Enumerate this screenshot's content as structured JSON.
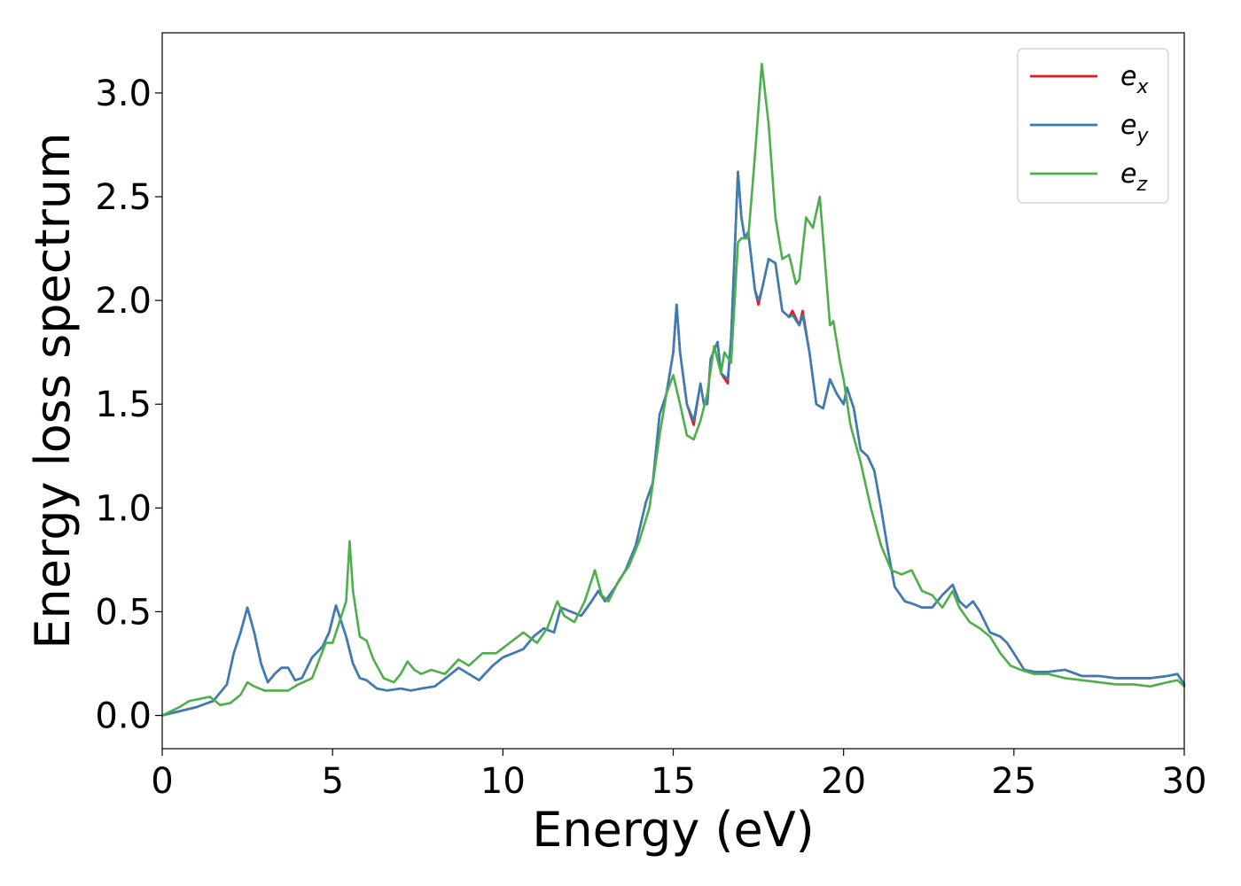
{
  "chart_data": {
    "type": "line",
    "title": "",
    "xlabel": "Energy (eV)",
    "ylabel": "Energy loss spectrum",
    "xlim": [
      0,
      30
    ],
    "ylim": [
      -0.16,
      3.29
    ],
    "xticks": [
      0,
      5,
      10,
      15,
      20,
      25,
      30
    ],
    "yticks": [
      0.0,
      0.5,
      1.0,
      1.5,
      2.0,
      2.5,
      3.0
    ],
    "xtick_labels": [
      "0",
      "5",
      "10",
      "15",
      "20",
      "25",
      "30"
    ],
    "ytick_labels": [
      "0.0",
      "0.5",
      "1.0",
      "1.5",
      "2.0",
      "2.5",
      "3.0"
    ],
    "grid": false,
    "legend_position": "top-right",
    "series": [
      {
        "name_base": "e",
        "name_sub": "x",
        "color": "#e41a1c",
        "x": [
          0,
          0.5,
          1,
          1.5,
          1.9,
          2.1,
          2.3,
          2.5,
          2.7,
          2.9,
          3.1,
          3.3,
          3.5,
          3.7,
          3.9,
          4.1,
          4.4,
          4.7,
          4.9,
          5.1,
          5.2,
          5.4,
          5.6,
          5.8,
          6.0,
          6.3,
          6.6,
          7.0,
          7.3,
          7.6,
          8.0,
          8.4,
          8.7,
          9.0,
          9.3,
          9.7,
          10.0,
          10.3,
          10.6,
          10.9,
          11.2,
          11.5,
          11.7,
          12.0,
          12.3,
          12.6,
          12.8,
          13.0,
          13.3,
          13.6,
          13.9,
          14.2,
          14.4,
          14.6,
          14.8,
          15.0,
          15.1,
          15.2,
          15.4,
          15.6,
          15.8,
          15.9,
          16.0,
          16.1,
          16.3,
          16.4,
          16.6,
          16.7,
          16.9,
          17.0,
          17.1,
          17.2,
          17.4,
          17.5,
          17.6,
          17.8,
          18.0,
          18.2,
          18.4,
          18.5,
          18.7,
          18.8,
          19.0,
          19.2,
          19.4,
          19.6,
          19.8,
          20.0,
          20.1,
          20.3,
          20.5,
          20.7,
          20.9,
          21.1,
          21.3,
          21.5,
          21.8,
          22.0,
          22.3,
          22.6,
          22.9,
          23.2,
          23.4,
          23.6,
          23.8,
          24.0,
          24.3,
          24.6,
          24.8,
          25.0,
          25.3,
          25.6,
          26.0,
          26.5,
          27.0,
          27.5,
          28.0,
          28.5,
          29.0,
          29.5,
          29.8,
          30.0
        ],
        "y": [
          0,
          0.02,
          0.04,
          0.07,
          0.15,
          0.3,
          0.4,
          0.52,
          0.4,
          0.25,
          0.16,
          0.2,
          0.23,
          0.23,
          0.17,
          0.18,
          0.28,
          0.33,
          0.4,
          0.53,
          0.48,
          0.38,
          0.25,
          0.18,
          0.17,
          0.13,
          0.12,
          0.13,
          0.12,
          0.13,
          0.14,
          0.19,
          0.23,
          0.2,
          0.17,
          0.24,
          0.28,
          0.3,
          0.32,
          0.38,
          0.42,
          0.4,
          0.52,
          0.5,
          0.48,
          0.55,
          0.6,
          0.55,
          0.62,
          0.7,
          0.82,
          1.03,
          1.12,
          1.45,
          1.55,
          1.75,
          1.98,
          1.75,
          1.5,
          1.4,
          1.6,
          1.5,
          1.5,
          1.72,
          1.8,
          1.65,
          1.6,
          1.82,
          2.62,
          2.4,
          2.3,
          2.33,
          2.05,
          1.98,
          2.05,
          2.2,
          2.18,
          1.95,
          1.92,
          1.95,
          1.88,
          1.95,
          1.75,
          1.5,
          1.48,
          1.62,
          1.55,
          1.5,
          1.58,
          1.48,
          1.28,
          1.25,
          1.18,
          1.0,
          0.8,
          0.62,
          0.55,
          0.54,
          0.52,
          0.52,
          0.58,
          0.63,
          0.55,
          0.52,
          0.55,
          0.5,
          0.4,
          0.38,
          0.35,
          0.3,
          0.22,
          0.21,
          0.21,
          0.22,
          0.19,
          0.19,
          0.18,
          0.18,
          0.18,
          0.19,
          0.2,
          0.15
        ]
      },
      {
        "name_base": "e",
        "name_sub": "y",
        "color": "#377eb8",
        "x": [
          0,
          0.5,
          1,
          1.5,
          1.9,
          2.1,
          2.3,
          2.5,
          2.7,
          2.9,
          3.1,
          3.3,
          3.5,
          3.7,
          3.9,
          4.1,
          4.4,
          4.7,
          4.9,
          5.1,
          5.2,
          5.4,
          5.6,
          5.8,
          6.0,
          6.3,
          6.6,
          7.0,
          7.3,
          7.6,
          8.0,
          8.4,
          8.7,
          9.0,
          9.3,
          9.7,
          10.0,
          10.3,
          10.6,
          10.9,
          11.2,
          11.5,
          11.7,
          12.0,
          12.3,
          12.6,
          12.8,
          13.0,
          13.3,
          13.6,
          13.9,
          14.2,
          14.4,
          14.6,
          14.8,
          15.0,
          15.1,
          15.2,
          15.4,
          15.6,
          15.8,
          15.9,
          16.0,
          16.1,
          16.3,
          16.4,
          16.6,
          16.7,
          16.9,
          17.0,
          17.1,
          17.2,
          17.4,
          17.5,
          17.6,
          17.8,
          18.0,
          18.2,
          18.4,
          18.5,
          18.7,
          18.8,
          19.0,
          19.2,
          19.4,
          19.6,
          19.8,
          20.0,
          20.1,
          20.3,
          20.5,
          20.7,
          20.9,
          21.1,
          21.3,
          21.5,
          21.8,
          22.0,
          22.3,
          22.6,
          22.9,
          23.2,
          23.4,
          23.6,
          23.8,
          24.0,
          24.3,
          24.6,
          24.8,
          25.0,
          25.3,
          25.6,
          26.0,
          26.5,
          27.0,
          27.5,
          28.0,
          28.5,
          29.0,
          29.5,
          29.8,
          30.0
        ],
        "y": [
          0,
          0.02,
          0.04,
          0.07,
          0.15,
          0.3,
          0.4,
          0.52,
          0.4,
          0.25,
          0.16,
          0.2,
          0.23,
          0.23,
          0.17,
          0.18,
          0.28,
          0.33,
          0.4,
          0.53,
          0.48,
          0.38,
          0.25,
          0.18,
          0.17,
          0.13,
          0.12,
          0.13,
          0.12,
          0.13,
          0.14,
          0.19,
          0.23,
          0.2,
          0.17,
          0.24,
          0.28,
          0.3,
          0.32,
          0.38,
          0.42,
          0.4,
          0.52,
          0.5,
          0.48,
          0.55,
          0.6,
          0.55,
          0.62,
          0.7,
          0.82,
          1.03,
          1.12,
          1.45,
          1.55,
          1.75,
          1.98,
          1.75,
          1.5,
          1.42,
          1.6,
          1.5,
          1.5,
          1.72,
          1.8,
          1.65,
          1.62,
          1.82,
          2.62,
          2.4,
          2.3,
          2.33,
          2.05,
          2.0,
          2.05,
          2.2,
          2.18,
          1.95,
          1.92,
          1.93,
          1.88,
          1.93,
          1.75,
          1.5,
          1.48,
          1.62,
          1.55,
          1.5,
          1.58,
          1.48,
          1.28,
          1.25,
          1.18,
          1.0,
          0.8,
          0.62,
          0.55,
          0.54,
          0.52,
          0.52,
          0.58,
          0.63,
          0.55,
          0.52,
          0.55,
          0.5,
          0.4,
          0.38,
          0.35,
          0.3,
          0.22,
          0.21,
          0.21,
          0.22,
          0.19,
          0.19,
          0.18,
          0.18,
          0.18,
          0.19,
          0.2,
          0.15
        ]
      },
      {
        "name_base": "e",
        "name_sub": "z",
        "color": "#4daf4a",
        "x": [
          0,
          0.5,
          0.8,
          1.1,
          1.4,
          1.7,
          2.0,
          2.3,
          2.5,
          2.7,
          3.0,
          3.3,
          3.7,
          4.0,
          4.4,
          4.8,
          5.0,
          5.2,
          5.4,
          5.5,
          5.6,
          5.8,
          6.0,
          6.2,
          6.5,
          6.8,
          7.0,
          7.2,
          7.4,
          7.6,
          7.9,
          8.3,
          8.7,
          9.0,
          9.4,
          9.8,
          10.2,
          10.6,
          11.0,
          11.3,
          11.6,
          11.8,
          12.1,
          12.4,
          12.7,
          12.9,
          13.1,
          13.4,
          13.7,
          14.0,
          14.3,
          14.6,
          14.8,
          15.0,
          15.2,
          15.4,
          15.6,
          15.8,
          16.0,
          16.2,
          16.4,
          16.5,
          16.7,
          16.9,
          17.0,
          17.2,
          17.4,
          17.6,
          17.8,
          18.0,
          18.2,
          18.4,
          18.6,
          18.7,
          18.9,
          19.1,
          19.3,
          19.4,
          19.6,
          19.7,
          19.9,
          20.0,
          20.2,
          20.5,
          20.8,
          21.1,
          21.4,
          21.7,
          22.0,
          22.3,
          22.6,
          22.9,
          23.2,
          23.4,
          23.7,
          24.0,
          24.3,
          24.6,
          24.9,
          25.2,
          25.6,
          26.0,
          26.5,
          27.0,
          27.5,
          28.0,
          28.5,
          29.0,
          29.5,
          29.8,
          30.0
        ],
        "y": [
          0,
          0.04,
          0.07,
          0.08,
          0.09,
          0.05,
          0.06,
          0.1,
          0.16,
          0.14,
          0.12,
          0.12,
          0.12,
          0.15,
          0.18,
          0.35,
          0.35,
          0.45,
          0.55,
          0.84,
          0.6,
          0.38,
          0.36,
          0.27,
          0.18,
          0.16,
          0.2,
          0.26,
          0.22,
          0.2,
          0.22,
          0.2,
          0.27,
          0.24,
          0.3,
          0.3,
          0.35,
          0.4,
          0.35,
          0.42,
          0.55,
          0.48,
          0.45,
          0.55,
          0.7,
          0.58,
          0.55,
          0.65,
          0.72,
          0.84,
          1.0,
          1.35,
          1.55,
          1.64,
          1.5,
          1.35,
          1.33,
          1.42,
          1.55,
          1.78,
          1.65,
          1.75,
          1.7,
          2.28,
          2.3,
          2.3,
          2.7,
          3.14,
          2.85,
          2.4,
          2.2,
          2.22,
          2.08,
          2.1,
          2.4,
          2.35,
          2.5,
          2.3,
          1.88,
          1.9,
          1.7,
          1.62,
          1.4,
          1.22,
          1.0,
          0.82,
          0.7,
          0.68,
          0.7,
          0.6,
          0.58,
          0.52,
          0.6,
          0.52,
          0.45,
          0.42,
          0.38,
          0.3,
          0.24,
          0.22,
          0.2,
          0.2,
          0.18,
          0.17,
          0.16,
          0.15,
          0.15,
          0.14,
          0.16,
          0.17,
          0.14
        ]
      }
    ]
  }
}
